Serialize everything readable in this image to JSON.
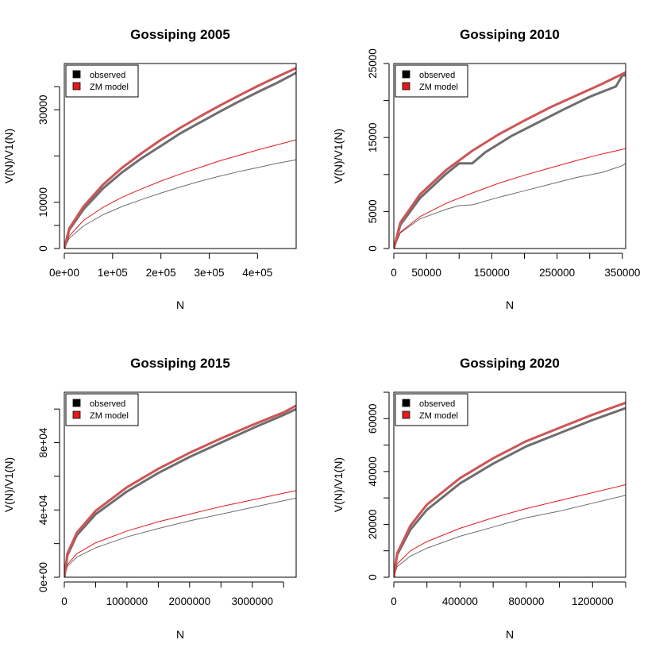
{
  "chart_data": [
    {
      "type": "line",
      "title": "Gossiping 2005",
      "xlabel": "N",
      "ylabel": "V(N)/V1(N)",
      "xlim": [
        0,
        480000
      ],
      "ylim": [
        0,
        40000
      ],
      "xticks": [
        0,
        100000,
        200000,
        300000,
        400000
      ],
      "xtick_labels": [
        "0e+00",
        "1e+05",
        "2e+05",
        "3e+05",
        "4e+05"
      ],
      "yticks": [
        0,
        5000,
        10000,
        20000,
        30000,
        35000
      ],
      "ytick_labels": [
        "0",
        "",
        "10000",
        "",
        "30000",
        ""
      ],
      "legend": {
        "position": "top-left",
        "entries": [
          {
            "label": "observed",
            "color": "#000000"
          },
          {
            "label": "ZM model",
            "color": "#e31a1c"
          }
        ]
      },
      "series": [
        {
          "group": "observed",
          "kind": "V(N)",
          "color": "#6e6e6e",
          "width": 3,
          "x": [
            0,
            10000,
            40000,
            80000,
            120000,
            160000,
            200000,
            240000,
            280000,
            320000,
            360000,
            400000,
            440000,
            480000
          ],
          "y": [
            0,
            4000,
            8500,
            13000,
            16500,
            19500,
            22200,
            24900,
            27200,
            29500,
            31700,
            33800,
            35800,
            38000
          ]
        },
        {
          "group": "ZM model",
          "kind": "V(N)",
          "color": "#cd5555",
          "width": 3,
          "x": [
            0,
            10000,
            40000,
            80000,
            120000,
            160000,
            200000,
            240000,
            280000,
            320000,
            360000,
            400000,
            440000,
            480000
          ],
          "y": [
            0,
            4300,
            9100,
            13800,
            17500,
            20600,
            23500,
            26100,
            28500,
            30800,
            33000,
            35100,
            37100,
            39000
          ]
        },
        {
          "group": "observed",
          "kind": "V1(N)",
          "color": "#6e6e6e",
          "width": 1,
          "x": [
            0,
            10000,
            40000,
            80000,
            120000,
            160000,
            200000,
            240000,
            280000,
            320000,
            360000,
            400000,
            440000,
            480000
          ],
          "y": [
            0,
            2200,
            4900,
            7300,
            9100,
            10600,
            12000,
            13300,
            14500,
            15600,
            16600,
            17500,
            18400,
            19200
          ]
        },
        {
          "group": "ZM model",
          "kind": "V1(N)",
          "color": "#e31a1c",
          "width": 1,
          "x": [
            0,
            10000,
            40000,
            80000,
            120000,
            160000,
            200000,
            240000,
            280000,
            320000,
            360000,
            400000,
            440000,
            480000
          ],
          "y": [
            0,
            2700,
            6100,
            8900,
            11100,
            12900,
            14600,
            16100,
            17500,
            18900,
            20100,
            21300,
            22400,
            23500
          ]
        }
      ]
    },
    {
      "type": "line",
      "title": "Gossiping 2010",
      "xlabel": "N",
      "ylabel": "V(N)/V1(N)",
      "xlim": [
        0,
        355000
      ],
      "ylim": [
        0,
        25000
      ],
      "xticks": [
        0,
        50000,
        100000,
        150000,
        200000,
        250000,
        300000,
        350000
      ],
      "xtick_labels": [
        "0",
        "50000",
        "",
        "150000",
        "",
        "250000",
        "",
        "350000"
      ],
      "yticks": [
        0,
        5000,
        10000,
        15000,
        20000,
        25000
      ],
      "ytick_labels": [
        "0",
        "5000",
        "",
        "15000",
        "",
        "25000"
      ],
      "legend": {
        "position": "top-left",
        "entries": [
          {
            "label": "observed",
            "color": "#000000"
          },
          {
            "label": "ZM model",
            "color": "#e31a1c"
          }
        ]
      },
      "series": [
        {
          "group": "observed",
          "kind": "V(N)",
          "color": "#6e6e6e",
          "width": 3,
          "x": [
            0,
            10000,
            40000,
            80000,
            100000,
            120000,
            140000,
            180000,
            220000,
            260000,
            300000,
            340000,
            350000,
            355000
          ],
          "y": [
            0,
            3200,
            6800,
            10100,
            11500,
            11500,
            13000,
            15200,
            17000,
            18800,
            20500,
            21900,
            23400,
            23400
          ]
        },
        {
          "group": "ZM model",
          "kind": "V(N)",
          "color": "#cd5555",
          "width": 3,
          "x": [
            0,
            10000,
            40000,
            80000,
            120000,
            160000,
            200000,
            240000,
            280000,
            320000,
            355000
          ],
          "y": [
            0,
            3500,
            7300,
            10600,
            13200,
            15400,
            17300,
            19100,
            20700,
            22300,
            23800
          ]
        },
        {
          "group": "observed",
          "kind": "V1(N)",
          "color": "#6e6e6e",
          "width": 1,
          "x": [
            0,
            10000,
            40000,
            80000,
            100000,
            120000,
            160000,
            200000,
            240000,
            280000,
            320000,
            350000,
            355000
          ],
          "y": [
            0,
            2100,
            4000,
            5300,
            5800,
            5900,
            6900,
            7800,
            8700,
            9600,
            10300,
            11200,
            11500
          ]
        },
        {
          "group": "ZM model",
          "kind": "V1(N)",
          "color": "#e31a1c",
          "width": 1,
          "x": [
            0,
            10000,
            40000,
            80000,
            120000,
            160000,
            200000,
            240000,
            280000,
            320000,
            355000
          ],
          "y": [
            0,
            2200,
            4300,
            6100,
            7500,
            8800,
            9900,
            10900,
            11900,
            12800,
            13500
          ]
        }
      ]
    },
    {
      "type": "line",
      "title": "Gossiping 2015",
      "xlabel": "N",
      "ylabel": "V(N)/V1(N)",
      "xlim": [
        0,
        3700000
      ],
      "ylim": [
        0,
        110000
      ],
      "xticks": [
        0,
        500000,
        1000000,
        1500000,
        2000000,
        2500000,
        3000000,
        3500000
      ],
      "xtick_labels": [
        "0",
        "",
        "1000000",
        "",
        "2000000",
        "",
        "3000000",
        ""
      ],
      "yticks": [
        0,
        20000,
        40000,
        60000,
        80000,
        100000
      ],
      "ytick_labels": [
        "0e+00",
        "",
        "4e+04",
        "",
        "8e+04",
        ""
      ],
      "legend": {
        "position": "top-left",
        "entries": [
          {
            "label": "observed",
            "color": "#000000"
          },
          {
            "label": "ZM model",
            "color": "#e31a1c"
          }
        ]
      },
      "series": [
        {
          "group": "observed",
          "kind": "V(N)",
          "color": "#6e6e6e",
          "width": 3,
          "x": [
            0,
            50000,
            200000,
            500000,
            1000000,
            1500000,
            2000000,
            2500000,
            3000000,
            3500000,
            3700000
          ],
          "y": [
            0,
            13000,
            25000,
            37500,
            51000,
            62000,
            71500,
            80000,
            88500,
            96500,
            100000
          ]
        },
        {
          "group": "ZM model",
          "kind": "V(N)",
          "color": "#cd5555",
          "width": 3,
          "x": [
            0,
            50000,
            200000,
            500000,
            1000000,
            1500000,
            2000000,
            2500000,
            3000000,
            3500000,
            3700000
          ],
          "y": [
            0,
            14000,
            26500,
            39500,
            53500,
            64500,
            74000,
            82500,
            90500,
            98000,
            102000
          ]
        },
        {
          "group": "observed",
          "kind": "V1(N)",
          "color": "#6e6e6e",
          "width": 1,
          "x": [
            0,
            50000,
            200000,
            500000,
            1000000,
            1500000,
            2000000,
            2500000,
            3000000,
            3500000,
            3700000
          ],
          "y": [
            0,
            6500,
            12000,
            17500,
            24000,
            29000,
            33500,
            37500,
            41500,
            45500,
            47000
          ]
        },
        {
          "group": "ZM model",
          "kind": "V1(N)",
          "color": "#e31a1c",
          "width": 1,
          "x": [
            0,
            50000,
            200000,
            500000,
            1000000,
            1500000,
            2000000,
            2500000,
            3000000,
            3500000,
            3700000
          ],
          "y": [
            0,
            7500,
            14000,
            20500,
            27500,
            33000,
            37500,
            42000,
            46000,
            50000,
            51500
          ]
        }
      ]
    },
    {
      "type": "line",
      "title": "Gossiping 2020",
      "xlabel": "N",
      "ylabel": "V(N)/V1(N)",
      "xlim": [
        0,
        1400000
      ],
      "ylim": [
        0,
        70000
      ],
      "xticks": [
        0,
        200000,
        400000,
        600000,
        800000,
        1000000,
        1200000,
        1400000
      ],
      "xtick_labels": [
        "0",
        "",
        "400000",
        "",
        "800000",
        "",
        "1200000",
        ""
      ],
      "yticks": [
        0,
        10000,
        20000,
        30000,
        40000,
        50000,
        60000,
        70000
      ],
      "ytick_labels": [
        "0",
        "",
        "20000",
        "",
        "40000",
        "",
        "60000",
        ""
      ],
      "legend": {
        "position": "top-left",
        "entries": [
          {
            "label": "observed",
            "color": "#000000"
          },
          {
            "label": "ZM model",
            "color": "#e31a1c"
          }
        ]
      },
      "series": [
        {
          "group": "observed",
          "kind": "V(N)",
          "color": "#6e6e6e",
          "width": 3,
          "x": [
            0,
            20000,
            100000,
            200000,
            400000,
            600000,
            800000,
            1000000,
            1200000,
            1400000
          ],
          "y": [
            0,
            8500,
            18000,
            25500,
            35500,
            43000,
            49500,
            54500,
            59500,
            64000
          ]
        },
        {
          "group": "ZM model",
          "kind": "V(N)",
          "color": "#cd5555",
          "width": 3,
          "x": [
            0,
            20000,
            100000,
            200000,
            400000,
            600000,
            800000,
            1000000,
            1200000,
            1400000
          ],
          "y": [
            0,
            9000,
            19500,
            27500,
            37500,
            45000,
            51500,
            56500,
            61500,
            66000
          ]
        },
        {
          "group": "observed",
          "kind": "V1(N)",
          "color": "#6e6e6e",
          "width": 1,
          "x": [
            0,
            20000,
            100000,
            200000,
            400000,
            600000,
            800000,
            1000000,
            1200000,
            1400000
          ],
          "y": [
            0,
            4000,
            8000,
            11000,
            15500,
            19000,
            22500,
            25000,
            28000,
            31000
          ]
        },
        {
          "group": "ZM model",
          "kind": "V1(N)",
          "color": "#e31a1c",
          "width": 1,
          "x": [
            0,
            20000,
            100000,
            200000,
            400000,
            600000,
            800000,
            1000000,
            1200000,
            1400000
          ],
          "y": [
            0,
            5000,
            10000,
            13500,
            18500,
            22500,
            26000,
            29000,
            32000,
            35000
          ]
        }
      ]
    }
  ]
}
